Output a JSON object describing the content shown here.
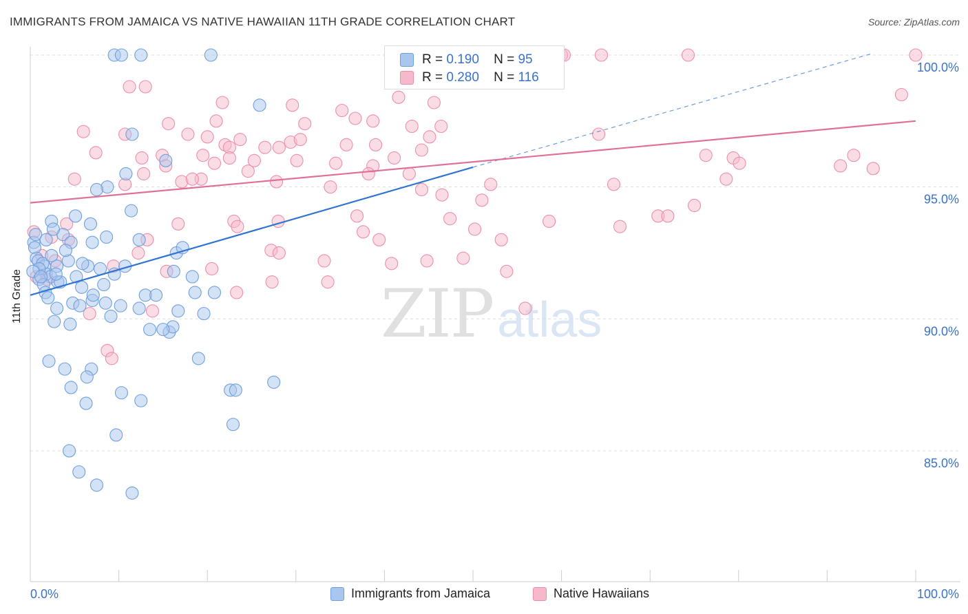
{
  "title": "IMMIGRANTS FROM JAMAICA VS NATIVE HAWAIIAN 11TH GRADE CORRELATION CHART",
  "source": "Source: ZipAtlas.com",
  "watermark": {
    "zip": "ZIP",
    "atlas": "atlas"
  },
  "legend": {
    "r_label": "R =",
    "n_label": "N =",
    "entries": [
      {
        "r": "0.190",
        "n": "95"
      },
      {
        "r": "0.280",
        "n": "116"
      }
    ]
  },
  "colors": {
    "blue_fill": "#a9c6ee",
    "blue_stroke": "#6f9fde",
    "blue_line": "#2f74d0",
    "pink_fill": "#f6b9cc",
    "pink_stroke": "#ec8eab",
    "pink_line": "#e0709a",
    "axis_label": "#3a72c8",
    "grid": "#dddddd"
  },
  "chart_data": {
    "type": "scatter",
    "title": "IMMIGRANTS FROM JAMAICA VS NATIVE HAWAIIAN 11TH GRADE CORRELATION CHART",
    "xlabel": "",
    "ylabel": "11th Grade",
    "xlim": [
      0,
      100
    ],
    "ylim": [
      80.5,
      100.5
    ],
    "x_tick_labels": [
      "0.0%",
      "100.0%"
    ],
    "y_ticks": [
      85,
      90,
      95,
      100
    ],
    "y_tick_labels": [
      "85.0%",
      "90.0%",
      "95.0%",
      "100.0%"
    ],
    "series": [
      {
        "name": "Immigrants from Jamaica",
        "color": "#a9c6ee",
        "trend": {
          "x0": 0,
          "y0": 90.9,
          "x1": 50,
          "y1": 95.75,
          "dashed_to_x": 95,
          "dashed_to_y": 100.05
        },
        "points": [
          [
            9.5,
            100
          ],
          [
            10.3,
            100
          ],
          [
            12.5,
            100
          ],
          [
            20.4,
            100
          ],
          [
            25.9,
            98.1
          ],
          [
            11.5,
            97
          ],
          [
            15.3,
            96
          ],
          [
            10.8,
            95.5
          ],
          [
            8.7,
            95
          ],
          [
            7.5,
            94.9
          ],
          [
            2.4,
            93.7
          ],
          [
            5.1,
            93.9
          ],
          [
            11.4,
            94.1
          ],
          [
            3.7,
            93.2
          ],
          [
            0.4,
            92.9
          ],
          [
            0.5,
            92.7
          ],
          [
            4.6,
            92.9
          ],
          [
            7.0,
            92.9
          ],
          [
            8.6,
            93.1
          ],
          [
            12.3,
            93.0
          ],
          [
            16.5,
            92.5
          ],
          [
            4.3,
            92.2
          ],
          [
            0.7,
            92.3
          ],
          [
            0.9,
            92.2
          ],
          [
            1.6,
            92.0
          ],
          [
            3.0,
            92.0
          ],
          [
            6.5,
            92.0
          ],
          [
            7.9,
            91.9
          ],
          [
            10.7,
            92.0
          ],
          [
            1.8,
            91.7
          ],
          [
            2.3,
            91.6
          ],
          [
            1.0,
            91.5
          ],
          [
            1.5,
            91.3
          ],
          [
            3.1,
            91.4
          ],
          [
            5.2,
            91.6
          ],
          [
            9.5,
            91.7
          ],
          [
            16.2,
            91.8
          ],
          [
            18.3,
            91.6
          ],
          [
            1.7,
            91.0
          ],
          [
            2.0,
            90.8
          ],
          [
            4.8,
            90.6
          ],
          [
            5.6,
            90.5
          ],
          [
            7.0,
            90.7
          ],
          [
            8.5,
            90.6
          ],
          [
            3.0,
            90.4
          ],
          [
            10.2,
            90.5
          ],
          [
            12.3,
            90.4
          ],
          [
            16.7,
            90.3
          ],
          [
            19.6,
            90.2
          ],
          [
            2.7,
            89.9
          ],
          [
            4.5,
            89.8
          ],
          [
            13.5,
            89.6
          ],
          [
            15.7,
            89.5
          ],
          [
            16.1,
            89.7
          ],
          [
            2.1,
            88.4
          ],
          [
            3.9,
            88.1
          ],
          [
            6.9,
            88.1
          ],
          [
            6.4,
            87.8
          ],
          [
            10.3,
            87.2
          ],
          [
            12.5,
            86.9
          ],
          [
            19.0,
            88.5
          ],
          [
            22.6,
            87.3
          ],
          [
            23.2,
            87.3
          ],
          [
            27.5,
            87.6
          ],
          [
            4.6,
            87.4
          ],
          [
            6.3,
            86.8
          ],
          [
            9.7,
            85.6
          ],
          [
            22.9,
            86.0
          ],
          [
            4.4,
            85.0
          ],
          [
            5.5,
            84.2
          ],
          [
            7.5,
            83.7
          ],
          [
            11.5,
            83.4
          ],
          [
            0.6,
            93.2
          ],
          [
            1.4,
            92.1
          ],
          [
            6.8,
            93.6
          ],
          [
            8.3,
            91.3
          ],
          [
            1.0,
            91.9
          ],
          [
            2.4,
            92.4
          ],
          [
            3.4,
            91.4
          ],
          [
            13.0,
            90.9
          ],
          [
            14.2,
            90.9
          ],
          [
            18.6,
            91.0
          ],
          [
            0.3,
            91.8
          ],
          [
            1.2,
            91.6
          ],
          [
            2.9,
            91.7
          ],
          [
            4.0,
            92.6
          ],
          [
            5.9,
            92.1
          ],
          [
            7.1,
            90.9
          ],
          [
            9.1,
            90.1
          ],
          [
            15.0,
            89.6
          ],
          [
            17.2,
            92.7
          ],
          [
            20.8,
            91.0
          ],
          [
            1.8,
            93.0
          ],
          [
            2.6,
            93.4
          ],
          [
            5.8,
            91.2
          ]
        ]
      },
      {
        "name": "Native Hawaiians",
        "color": "#f6b9cc",
        "trend": {
          "x0": 0,
          "y0": 94.4,
          "x1": 100,
          "y1": 97.5
        },
        "points": [
          [
            44.5,
            100
          ],
          [
            55,
            100
          ],
          [
            60,
            100
          ],
          [
            60.3,
            100
          ],
          [
            64.5,
            100
          ],
          [
            74.3,
            100
          ],
          [
            100,
            100
          ],
          [
            11.2,
            98.8
          ],
          [
            13.0,
            98.8
          ],
          [
            21.7,
            98.2
          ],
          [
            29.6,
            98.1
          ],
          [
            45.6,
            98.2
          ],
          [
            41.6,
            98.4
          ],
          [
            35.2,
            97.9
          ],
          [
            36.7,
            97.6
          ],
          [
            38.7,
            97.5
          ],
          [
            43.1,
            97.3
          ],
          [
            45.1,
            96.9
          ],
          [
            46.4,
            97.3
          ],
          [
            64.2,
            97.0
          ],
          [
            6.0,
            97.1
          ],
          [
            10.7,
            97.0
          ],
          [
            15.6,
            97.4
          ],
          [
            21.0,
            97.5
          ],
          [
            17.8,
            97.0
          ],
          [
            20.0,
            96.9
          ],
          [
            22.0,
            96.6
          ],
          [
            22.5,
            96.5
          ],
          [
            23.7,
            96.8
          ],
          [
            26.5,
            96.5
          ],
          [
            28.1,
            96.5
          ],
          [
            29.4,
            96.7
          ],
          [
            30.5,
            96.8
          ],
          [
            35.7,
            96.6
          ],
          [
            39.0,
            96.6
          ],
          [
            7.4,
            96.3
          ],
          [
            12.6,
            96.1
          ],
          [
            14.9,
            96.2
          ],
          [
            19.5,
            96.2
          ],
          [
            22.5,
            96.1
          ],
          [
            25.3,
            96.0
          ],
          [
            30.1,
            96.0
          ],
          [
            34.5,
            95.9
          ],
          [
            38.7,
            95.8
          ],
          [
            41.1,
            96.1
          ],
          [
            44.2,
            96.4
          ],
          [
            52.0,
            95.1
          ],
          [
            65.9,
            95.1
          ],
          [
            76.3,
            96.2
          ],
          [
            78.6,
            95.3
          ],
          [
            79.4,
            96.1
          ],
          [
            80.1,
            95.9
          ],
          [
            91.5,
            95.8
          ],
          [
            93.0,
            96.2
          ],
          [
            95.2,
            95.7
          ],
          [
            98.4,
            98.5
          ],
          [
            5.0,
            95.3
          ],
          [
            10.7,
            95.1
          ],
          [
            12.8,
            95.5
          ],
          [
            15.3,
            95.8
          ],
          [
            17.1,
            95.2
          ],
          [
            19.3,
            95.3
          ],
          [
            20.8,
            95.9
          ],
          [
            24.6,
            95.6
          ],
          [
            27.8,
            95.2
          ],
          [
            33.9,
            95.0
          ],
          [
            38.2,
            95.5
          ],
          [
            42.8,
            95.5
          ],
          [
            44.2,
            94.9
          ],
          [
            46.5,
            94.7
          ],
          [
            51.0,
            94.5
          ],
          [
            0.4,
            93.3
          ],
          [
            2.4,
            93.1
          ],
          [
            4.3,
            93.0
          ],
          [
            13.2,
            93.0
          ],
          [
            16.7,
            93.6
          ],
          [
            23.0,
            93.7
          ],
          [
            23.4,
            93.5
          ],
          [
            28.0,
            93.7
          ],
          [
            37.6,
            93.3
          ],
          [
            39.4,
            93.0
          ],
          [
            47.4,
            93.8
          ],
          [
            50.2,
            93.4
          ],
          [
            53.2,
            93.0
          ],
          [
            58.6,
            93.7
          ],
          [
            66.6,
            93.5
          ],
          [
            70.9,
            93.9
          ],
          [
            72.0,
            93.9
          ],
          [
            75.0,
            94.3
          ],
          [
            1.3,
            92.4
          ],
          [
            2.8,
            92.2
          ],
          [
            9.4,
            92.0
          ],
          [
            12.2,
            92.5
          ],
          [
            15.4,
            91.8
          ],
          [
            20.5,
            91.9
          ],
          [
            27.2,
            92.6
          ],
          [
            28.1,
            92.5
          ],
          [
            33.2,
            92.2
          ],
          [
            40.8,
            92.1
          ],
          [
            44.8,
            92.2
          ],
          [
            48.9,
            92.3
          ],
          [
            53.8,
            91.8
          ],
          [
            0.7,
            91.6
          ],
          [
            1.9,
            91.5
          ],
          [
            23.3,
            91.0
          ],
          [
            27.3,
            91.4
          ],
          [
            33.6,
            91.4
          ],
          [
            6.7,
            90.2
          ],
          [
            13.8,
            90.3
          ],
          [
            55.9,
            90.4
          ],
          [
            8.7,
            88.8
          ],
          [
            9.2,
            88.5
          ],
          [
            4.1,
            93.6
          ],
          [
            18.3,
            95.3
          ],
          [
            31.0,
            97.4
          ],
          [
            36.9,
            93.9
          ]
        ]
      }
    ]
  },
  "bottom_legend": [
    {
      "label": "Immigrants from Jamaica"
    },
    {
      "label": "Native Hawaiians"
    }
  ]
}
